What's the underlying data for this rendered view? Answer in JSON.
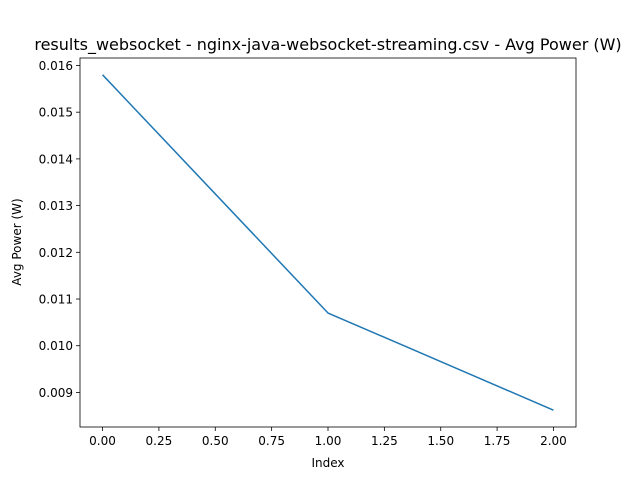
{
  "chart_data": {
    "type": "line",
    "title": "results_websocket - nginx-java-websocket-streaming.csv - Avg Power (W)",
    "xlabel": "Index",
    "ylabel": "Avg Power (W)",
    "xlim": [
      -0.1,
      2.1
    ],
    "ylim": [
      0.00826,
      0.01616
    ],
    "x_ticks": [
      0.0,
      0.25,
      0.5,
      0.75,
      1.0,
      1.25,
      1.5,
      1.75,
      2.0
    ],
    "x_tick_labels": [
      "0.00",
      "0.25",
      "0.50",
      "0.75",
      "1.00",
      "1.25",
      "1.50",
      "1.75",
      "2.00"
    ],
    "y_ticks": [
      0.009,
      0.01,
      0.011,
      0.012,
      0.013,
      0.014,
      0.015,
      0.016
    ],
    "y_tick_labels": [
      "0.009",
      "0.010",
      "0.011",
      "0.012",
      "0.013",
      "0.014",
      "0.015",
      "0.016"
    ],
    "grid": false,
    "series": [
      {
        "color": "#1f77b4",
        "x": [
          0,
          1,
          2
        ],
        "y": [
          0.0158,
          0.0107,
          0.00862
        ]
      }
    ]
  }
}
